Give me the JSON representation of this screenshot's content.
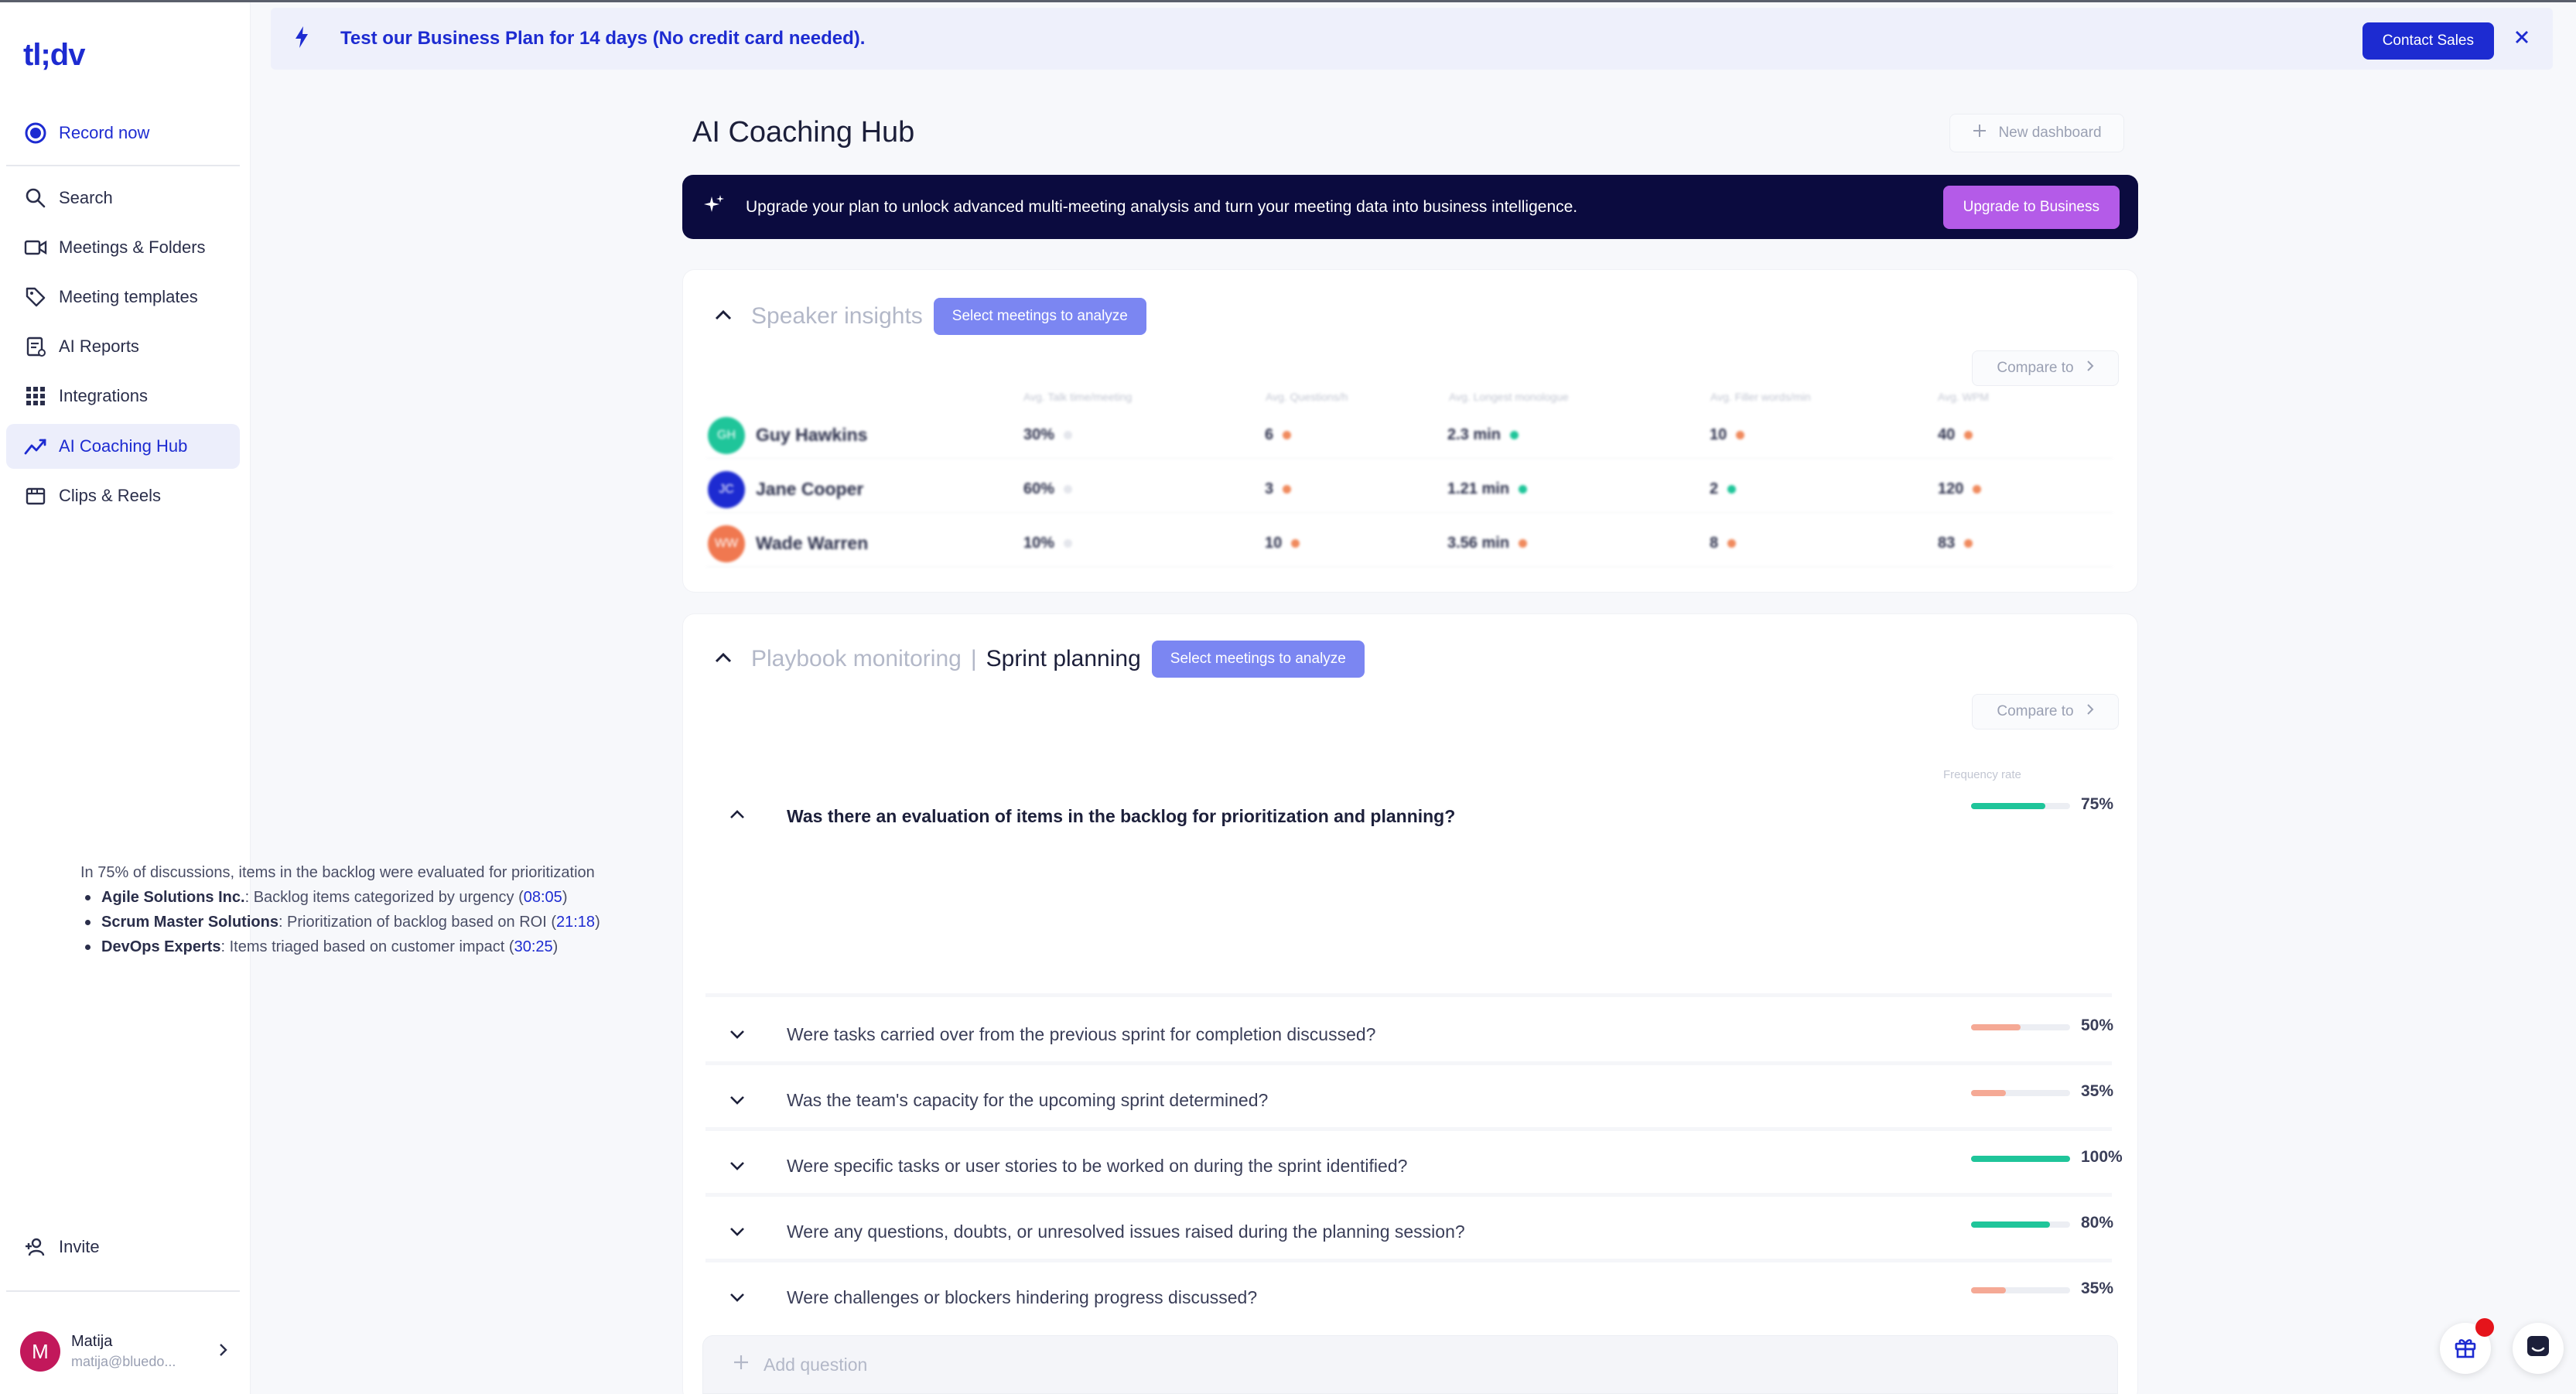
{
  "app": {
    "logo": "tl;dv"
  },
  "sidebar": {
    "record": "Record now",
    "items": [
      {
        "label": "Search",
        "icon": "search-icon"
      },
      {
        "label": "Meetings & Folders",
        "icon": "video-icon"
      },
      {
        "label": "Meeting templates",
        "icon": "tag-icon"
      },
      {
        "label": "AI Reports",
        "icon": "report-icon"
      },
      {
        "label": "Integrations",
        "icon": "grid-icon"
      },
      {
        "label": "AI Coaching Hub",
        "icon": "trend-icon",
        "active": true
      },
      {
        "label": "Clips & Reels",
        "icon": "clips-icon"
      }
    ],
    "invite": "Invite",
    "user": {
      "initial": "M",
      "name": "Matija",
      "email": "matija@bluedo..."
    }
  },
  "banner": {
    "text": "Test our Business Plan for 14 days (No credit card needed).",
    "contact_label": "Contact Sales"
  },
  "main": {
    "title": "AI Coaching Hub",
    "new_dashboard": "New dashboard",
    "upgrade": {
      "text": "Upgrade your plan to unlock advanced multi-meeting analysis and turn your meeting data into business intelligence.",
      "button": "Upgrade to Business"
    }
  },
  "speaker_insights": {
    "title": "Speaker insights",
    "select_label": "Select meetings to analyze",
    "compare_label": "Compare to",
    "columns": [
      "Avg. Talk time/meeting",
      "Avg. Questions/h",
      "Avg. Longest monologue",
      "Avg. Filler words/min",
      "Avg. WPM"
    ],
    "rows": [
      {
        "initials": "GH",
        "name": "Guy Hawkins",
        "color": "#1fc59a",
        "values": [
          "30%",
          "6",
          "2.3 min",
          "10",
          "40"
        ],
        "dots": [
          "#e4e6ec",
          "#f08a5d",
          "#1fc59a",
          "#f08a5d",
          "#f08a5d"
        ]
      },
      {
        "initials": "JC",
        "name": "Jane Cooper",
        "color": "#1d2bd1",
        "values": [
          "60%",
          "3",
          "1.21 min",
          "2",
          "120"
        ],
        "dots": [
          "#e4e6ec",
          "#f08a5d",
          "#1fc59a",
          "#1fc59a",
          "#f08a5d"
        ]
      },
      {
        "initials": "WW",
        "name": "Wade Warren",
        "color": "#f07850",
        "values": [
          "10%",
          "10",
          "3.56 min",
          "8",
          "83"
        ],
        "dots": [
          "#e4e6ec",
          "#f08a5d",
          "#f08a5d",
          "#f08a5d",
          "#f08a5d"
        ]
      }
    ]
  },
  "playbook": {
    "title": "Playbook monitoring",
    "separator": "|",
    "subtitle": "Sprint planning",
    "select_label": "Select meetings to analyze",
    "compare_label": "Compare to",
    "frequency_label": "Frequency rate",
    "open_question": {
      "text": "Was there an evaluation of items in the backlog for prioritization and planning?",
      "rate": 75,
      "rate_label": "75%",
      "summary": "In 75% of discussions, items in the backlog were evaluated for prioritization",
      "bullets": [
        {
          "company": "Agile Solutions Inc.",
          "text": ": Backlog items categorized by urgency (",
          "ts": "08:05",
          "end": ")"
        },
        {
          "company": "Scrum Master Solutions",
          "text": ": Prioritization of backlog based on ROI (",
          "ts": "21:18",
          "end": ")"
        },
        {
          "company": "DevOps Experts",
          "text": ": Items triaged based on customer impact (",
          "ts": "30:25",
          "end": ")"
        }
      ]
    },
    "questions": [
      {
        "text": "Were tasks carried over from the previous sprint for completion discussed?",
        "rate": 50,
        "rate_label": "50%",
        "color": "#f5a995"
      },
      {
        "text": "Was the team's capacity for the upcoming sprint determined?",
        "rate": 35,
        "rate_label": "35%",
        "color": "#f5a995"
      },
      {
        "text": "Were specific tasks or user stories to be worked on during the sprint identified?",
        "rate": 100,
        "rate_label": "100%",
        "color": "#1fc59a"
      },
      {
        "text": "Were any questions, doubts, or unresolved issues raised during the planning session?",
        "rate": 80,
        "rate_label": "80%",
        "color": "#1fc59a"
      },
      {
        "text": "Were challenges or blockers hindering progress discussed?",
        "rate": 35,
        "rate_label": "35%",
        "color": "#f5a995"
      }
    ],
    "add_question": "Add question"
  },
  "colors": {
    "brand": "#1d2bd1",
    "navy": "#0b0b3f",
    "purple": "#b45be8",
    "green": "#1fc59a",
    "salmon": "#f5a995"
  }
}
